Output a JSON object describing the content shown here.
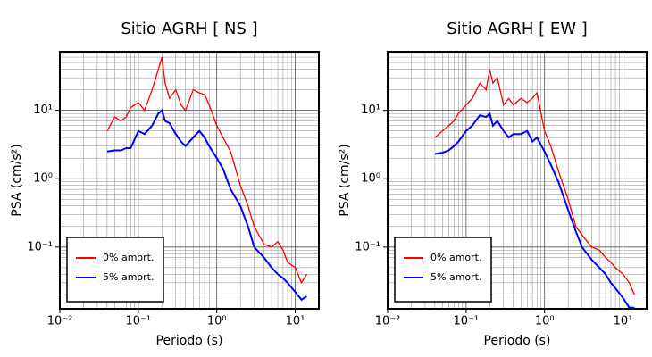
{
  "chart_data": [
    {
      "type": "line",
      "title": "Sitio AGRH [ NS ]",
      "x_label": "Periodo (s)",
      "y_label": "PSA (cm/s²)",
      "log_x": true,
      "log_y": true,
      "grid": true,
      "minor_grid": true,
      "legend": "lower left",
      "xlim": [
        0.01,
        20
      ],
      "ylim": [
        0.0125,
        72
      ],
      "xticks": [
        {
          "value": 0.01,
          "label": "10⁻²"
        },
        {
          "value": 0.1,
          "label": "10⁻¹"
        },
        {
          "value": 1,
          "label": "10⁰"
        },
        {
          "value": 10,
          "label": "10¹"
        }
      ],
      "yticks": [
        {
          "value": 0.1,
          "label": "10⁻¹"
        },
        {
          "value": 1,
          "label": "10⁰"
        },
        {
          "value": 10,
          "label": "10¹"
        }
      ],
      "x": [
        0.04,
        0.05,
        0.06,
        0.07,
        0.08,
        0.1,
        0.12,
        0.15,
        0.18,
        0.2,
        0.22,
        0.25,
        0.3,
        0.35,
        0.4,
        0.5,
        0.6,
        0.7,
        0.8,
        1,
        1.2,
        1.5,
        2,
        2.5,
        3,
        4,
        5,
        6,
        7,
        8,
        10,
        12,
        14
      ],
      "series": [
        {
          "name": "0% amort.",
          "color": "#ff0000",
          "values": [
            5,
            8,
            7,
            8,
            11,
            13,
            10,
            20,
            40,
            60,
            25,
            15,
            20,
            12,
            10,
            20,
            18,
            17,
            12,
            6,
            4,
            2.5,
            0.8,
            0.4,
            0.2,
            0.11,
            0.1,
            0.12,
            0.09,
            0.06,
            0.05,
            0.03,
            0.04
          ]
        },
        {
          "name": "5% amort.",
          "color": "#0000ff",
          "values": [
            2.5,
            2.6,
            2.6,
            2.8,
            2.8,
            5,
            4.5,
            6,
            9,
            10,
            7,
            6.5,
            4.5,
            3.5,
            3,
            4,
            5,
            4,
            3,
            2,
            1.4,
            0.7,
            0.4,
            0.2,
            0.1,
            0.07,
            0.05,
            0.04,
            0.035,
            0.03,
            0.022,
            0.017,
            0.019
          ]
        }
      ]
    },
    {
      "type": "line",
      "title": "Sitio AGRH [ EW ]",
      "x_label": "Periodo (s)",
      "y_label": "PSA (cm/s²)",
      "log_x": true,
      "log_y": true,
      "grid": true,
      "minor_grid": true,
      "legend": "lower left",
      "xlim": [
        0.01,
        20
      ],
      "ylim": [
        0.0125,
        72
      ],
      "xticks": [
        {
          "value": 0.01,
          "label": "10⁻²"
        },
        {
          "value": 0.1,
          "label": "10⁻¹"
        },
        {
          "value": 1,
          "label": "10⁰"
        },
        {
          "value": 10,
          "label": "10¹"
        }
      ],
      "yticks": [
        {
          "value": 0.1,
          "label": "10⁻¹"
        },
        {
          "value": 1,
          "label": "10⁰"
        },
        {
          "value": 10,
          "label": "10¹"
        }
      ],
      "x": [
        0.04,
        0.05,
        0.06,
        0.07,
        0.08,
        0.1,
        0.12,
        0.15,
        0.18,
        0.2,
        0.22,
        0.25,
        0.3,
        0.35,
        0.4,
        0.5,
        0.6,
        0.7,
        0.8,
        1,
        1.2,
        1.5,
        2,
        2.5,
        3,
        4,
        5,
        6,
        7,
        8,
        10,
        12,
        14
      ],
      "series": [
        {
          "name": "0% amort.",
          "color": "#ff0000",
          "values": [
            4,
            5,
            6,
            7,
            9,
            12,
            15,
            25,
            20,
            40,
            25,
            30,
            12,
            15,
            12,
            15,
            13,
            15,
            18,
            5,
            3,
            1.3,
            0.5,
            0.2,
            0.15,
            0.1,
            0.09,
            0.07,
            0.06,
            0.05,
            0.04,
            0.03,
            0.02
          ]
        },
        {
          "name": "5% amort.",
          "color": "#0000ff",
          "values": [
            2.3,
            2.4,
            2.6,
            3,
            3.5,
            5,
            6,
            8.5,
            8,
            9,
            6,
            7,
            5,
            4,
            4.5,
            4.5,
            5,
            3.5,
            4,
            2.5,
            1.6,
            0.9,
            0.35,
            0.17,
            0.1,
            0.065,
            0.05,
            0.04,
            0.03,
            0.025,
            0.018,
            0.013,
            0.013
          ]
        }
      ]
    }
  ]
}
